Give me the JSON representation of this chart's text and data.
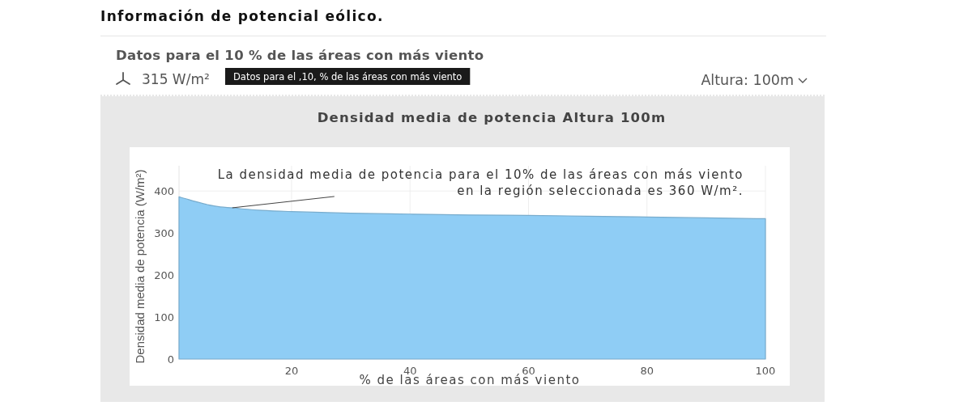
{
  "chart_data": {
    "type": "area",
    "title": "Densidad media de potencia Altura 100m",
    "xlabel": "% de las áreas con más viento",
    "ylabel": "Densidad media de potencia (W/m²)",
    "x": [
      1,
      2,
      4,
      6,
      8,
      10,
      12,
      15,
      20,
      25,
      30,
      40,
      50,
      60,
      70,
      80,
      90,
      100
    ],
    "series": [
      {
        "color": "#8fcdf5",
        "values": [
          386,
          382,
          374,
          367,
          362,
          360,
          357,
          354,
          351,
          349,
          347,
          345,
          343,
          342,
          340,
          338,
          336,
          334
        ]
      }
    ],
    "xlim": [
      1,
      100
    ],
    "xticks": [
      20,
      40,
      60,
      80,
      100
    ],
    "ylim": [
      0,
      460
    ],
    "yticks": [
      0,
      100,
      200,
      300,
      400
    ],
    "grid": true,
    "annotations": [
      "Información de potencial eólico.",
      "Datos para el 10 % de las áreas con más viento",
      "315 W/m²",
      "Datos para el ,10, % de las áreas con más viento",
      "Altura: 100m",
      {
        "text": "La densidad media de potencia para el 10% de las áreas con más viento\nen la región seleccionada es 360 W/m².",
        "x": 10,
        "y": 360
      }
    ]
  }
}
